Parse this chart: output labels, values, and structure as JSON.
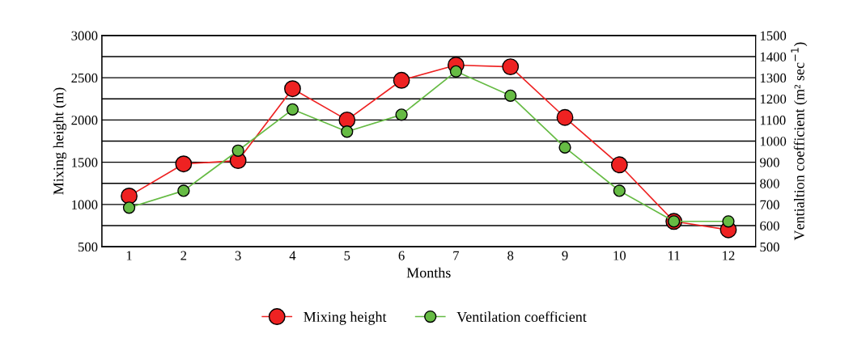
{
  "chart_data": {
    "type": "line",
    "xlabel": "Months",
    "ylabel": "Mixing height (m)",
    "y2label": "Ventialtion coefficient (m² sec$^{−1}$)",
    "categories": [
      "1",
      "2",
      "3",
      "4",
      "5",
      "6",
      "7",
      "8",
      "9",
      "10",
      "11",
      "12"
    ],
    "series": [
      {
        "name": "Mixing height",
        "color": "#ee2222",
        "values": [
          1100,
          1480,
          1520,
          2370,
          2000,
          2470,
          2650,
          2630,
          2030,
          1470,
          800,
          700
        ]
      },
      {
        "name": "Ventilation coefficient",
        "color": "#66bb44",
        "axis": "y2",
        "values": [
          685,
          765,
          955,
          1150,
          1045,
          1125,
          1330,
          1215,
          970,
          765,
          620,
          620
        ]
      }
    ],
    "ylim": [
      500,
      3000
    ],
    "yticks": [
      500,
      {
        "value": 750,
        "label": null
      },
      1000,
      {
        "value": 1250,
        "label": null
      },
      1500,
      {
        "value": 1750,
        "label": null
      },
      2000,
      {
        "value": 2250,
        "label": null
      },
      2500,
      {
        "value": 2750,
        "label": null
      },
      3000
    ],
    "y2lim": [
      500,
      1500
    ],
    "y2ticks": [
      500,
      600,
      700,
      800,
      900,
      1000,
      1100,
      1200,
      1300,
      1400,
      1500
    ],
    "grid": "y",
    "legend": "bottom",
    "marker": "circle",
    "line_style": "solid"
  }
}
